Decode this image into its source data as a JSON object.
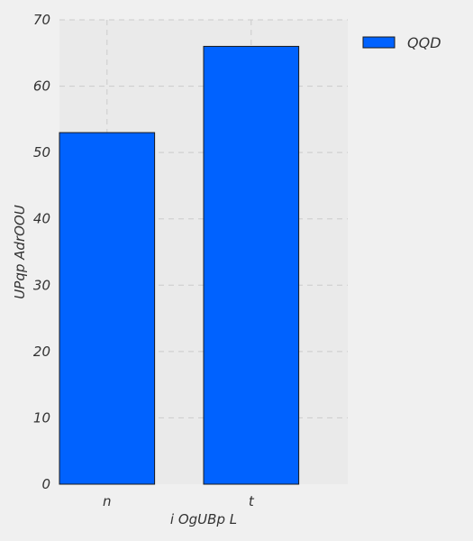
{
  "chart_data": {
    "type": "bar",
    "categories": [
      "n",
      "t"
    ],
    "series": [
      {
        "name": "QQD",
        "values": [
          53,
          66
        ]
      }
    ],
    "title": "",
    "xlabel": "i OgUBp L",
    "ylabel": "UPqp AdrOOU",
    "ylim": [
      0,
      70
    ],
    "yticks": [
      0,
      10,
      20,
      30,
      40,
      50,
      60,
      70
    ],
    "grid": true,
    "legend_position": "right"
  },
  "colors": {
    "bar_fill": "#0062ff",
    "bar_stroke": "#1a1a1a",
    "plot_background": "#eaeaea",
    "page_background": "#f0f0f0",
    "grid": "#cbcbcb"
  }
}
